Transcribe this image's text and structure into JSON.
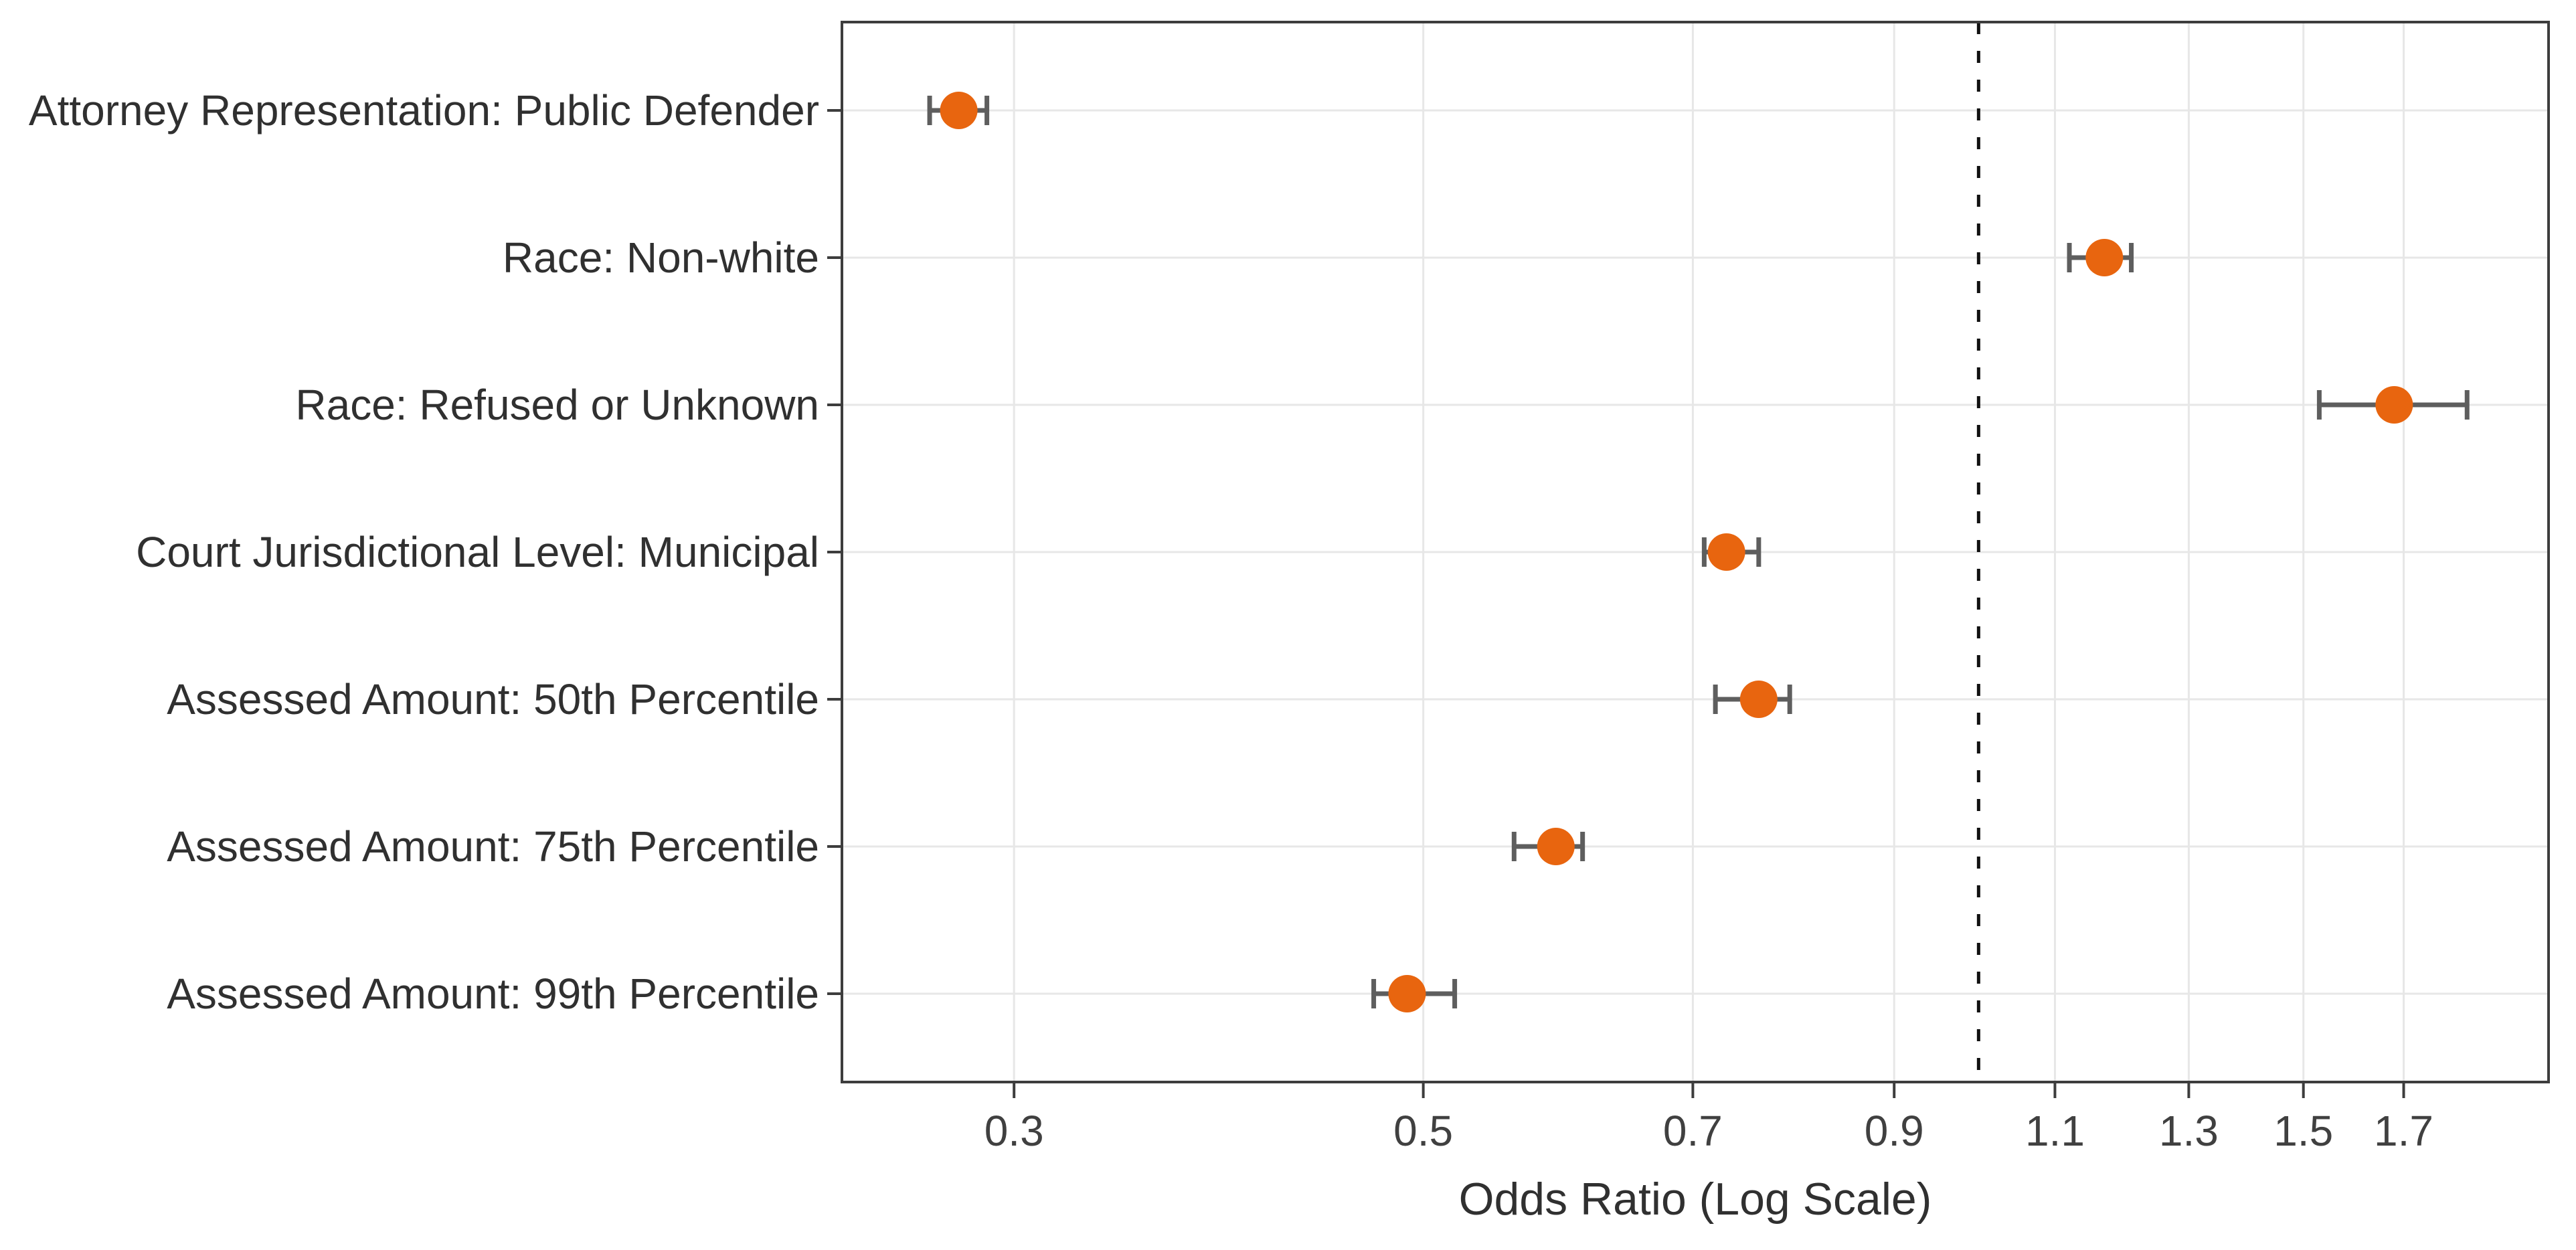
{
  "chart_data": {
    "type": "scatter",
    "subtype": "forest-plot-with-error-bars",
    "title": "",
    "xlabel": "Odds Ratio (Log Scale)",
    "ylabel": "",
    "x_scale": "log",
    "x_domain": [
      0.242,
      2.037
    ],
    "x_ticks": [
      0.3,
      0.5,
      0.7,
      0.9,
      1.1,
      1.3,
      1.5,
      1.7
    ],
    "x_tick_labels": [
      "0.3",
      "0.5",
      "0.7",
      "0.9",
      "1.1",
      "1.3",
      "1.5",
      "1.7"
    ],
    "reference_line_x": 1.0,
    "grid": "on",
    "legend": "none",
    "categories": [
      "Attorney Representation: Public Defender",
      "Race: Non-white",
      "Race: Refused or Unknown",
      "Court Jurisdictional Level: Municipal",
      "Assessed Amount: 50th Percentile",
      "Assessed Amount: 75th Percentile",
      "Assessed Amount: 99th Percentile"
    ],
    "series": [
      {
        "name": "Odds Ratio",
        "values": [
          0.28,
          1.17,
          1.68,
          0.73,
          0.76,
          0.59,
          0.49
        ],
        "ci_low": [
          0.27,
          1.12,
          1.53,
          0.71,
          0.72,
          0.56,
          0.47
        ],
        "ci_high": [
          0.29,
          1.21,
          1.84,
          0.76,
          0.79,
          0.61,
          0.52
        ]
      }
    ]
  },
  "colors": {
    "marker": "#E8650F",
    "error_bar": "#5E5E5E",
    "gridline": "#E7E7E7",
    "panel_border": "#3D3D3D",
    "reference_line": "#111111",
    "label_text": "#303030",
    "tick_text": "#404040",
    "background": "#FFFFFF"
  }
}
